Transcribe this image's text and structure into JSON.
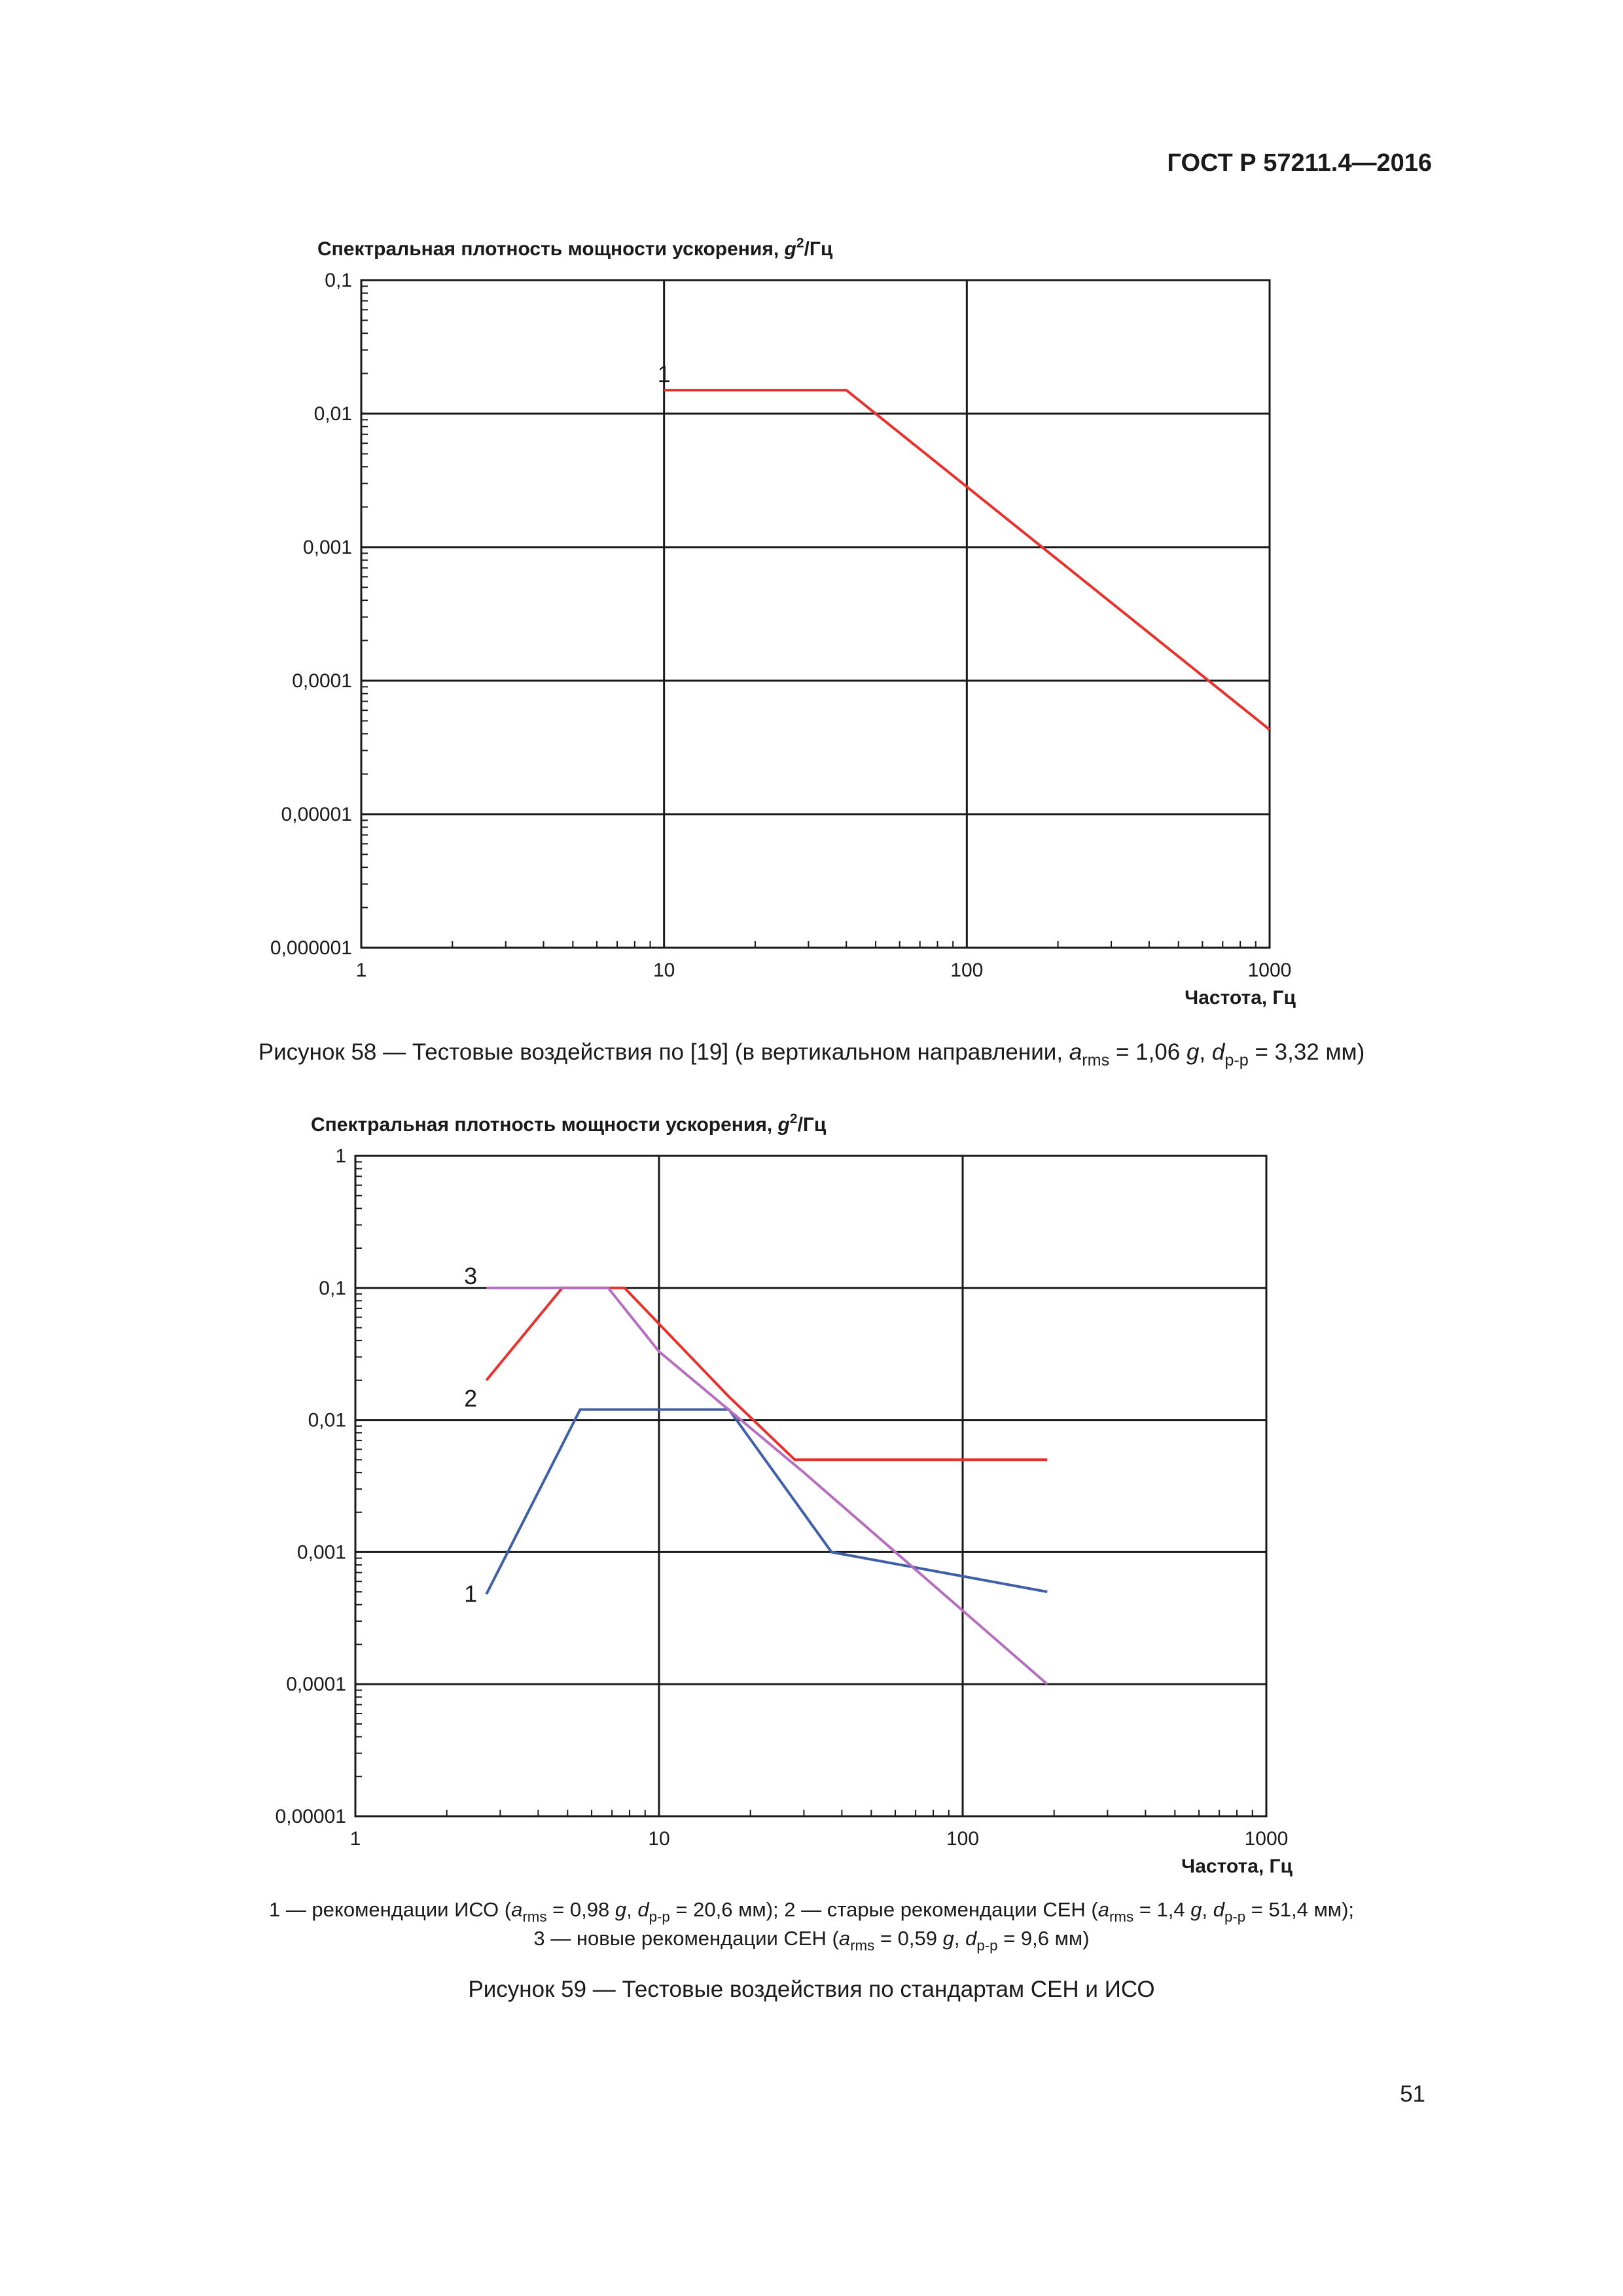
{
  "header": {
    "standard": "ГОСТ Р 57211.4—2016"
  },
  "page_number": "51",
  "figure58": {
    "caption": {
      "prefix": "Рисунок 58 — Тестовые воздействия по [19] (в вертикальном направлении, ",
      "a": "a",
      "rms": "rms",
      "arms_eq": " = 1,06 ",
      "g": "g",
      "comma": ", ",
      "d": "d",
      "pp": "p-p",
      "dpp_eq": " = 3,32 мм)"
    }
  },
  "figure59": {
    "legend": {
      "l1_a": "1 — рекомендации ИСО (",
      "l1_b": " = 0,98 ",
      "l1_c": " = 20,6 мм); 2 — старые рекомендации СЕН (",
      "l1_d": " = 1,4 ",
      "l1_e": " = 51,4 мм);",
      "l2_a": "3 — новые рекомендации СЕН (",
      "l2_b": " = 0,59 ",
      "l2_c": " = 9,6 мм)",
      "a": "a",
      "rms": "rms",
      "g": "g",
      "comma": ", ",
      "d": "d",
      "pp": "p-p"
    },
    "caption": "Рисунок 59 — Тестовые воздействия по стандартам СЕН и ИСО"
  },
  "chart_data": [
    {
      "type": "line",
      "id": "chart1",
      "title_main": "Спектральная плотность мощности ускорения, ",
      "title_g": "g",
      "title_sup": "2",
      "title_unit": "/Гц",
      "xlabel": "Частота, Гц",
      "xscale": "log",
      "yscale": "log",
      "xlim": [
        1,
        1000
      ],
      "ylim": [
        1e-06,
        0.1
      ],
      "x_ticks": [
        "1",
        "10",
        "100",
        "1000"
      ],
      "y_ticks": [
        "0,1",
        "0,01",
        "0,001",
        "0,0001",
        "0,00001",
        "0,000001"
      ],
      "grid": true,
      "series": [
        {
          "name": "1",
          "color": "#e8312a",
          "x": [
            10,
            40,
            1000
          ],
          "y": [
            0.015,
            0.015,
            4.3e-05
          ]
        }
      ]
    },
    {
      "type": "line",
      "id": "chart2",
      "title_main": "Спектральная плотность мощности ускорения, ",
      "title_g": "g",
      "title_sup": "2",
      "title_unit": "/Гц",
      "xlabel": "Частота, Гц",
      "xscale": "log",
      "yscale": "log",
      "xlim": [
        1,
        1000
      ],
      "ylim": [
        1e-05,
        1
      ],
      "x_ticks": [
        "1",
        "10",
        "100",
        "1000"
      ],
      "y_ticks": [
        "1",
        "0,1",
        "0,01",
        "0,001",
        "0,0001",
        "0,00001"
      ],
      "grid": true,
      "series": [
        {
          "name": "1",
          "color": "#3f5fa8",
          "x": [
            2.7,
            5.5,
            17,
            37,
            190
          ],
          "y": [
            0.00048,
            0.012,
            0.012,
            0.001,
            0.0005
          ]
        },
        {
          "name": "2",
          "color": "#e8312a",
          "x": [
            2.7,
            4.8,
            7.7,
            17,
            28,
            190
          ],
          "y": [
            0.02,
            0.1,
            0.1,
            0.015,
            0.005,
            0.005
          ]
        },
        {
          "name": "3",
          "color": "#b56fbd",
          "x": [
            2.7,
            6.8,
            10,
            30,
            190
          ],
          "y": [
            0.1,
            0.1,
            0.033,
            0.004,
            0.0001
          ]
        }
      ]
    }
  ]
}
